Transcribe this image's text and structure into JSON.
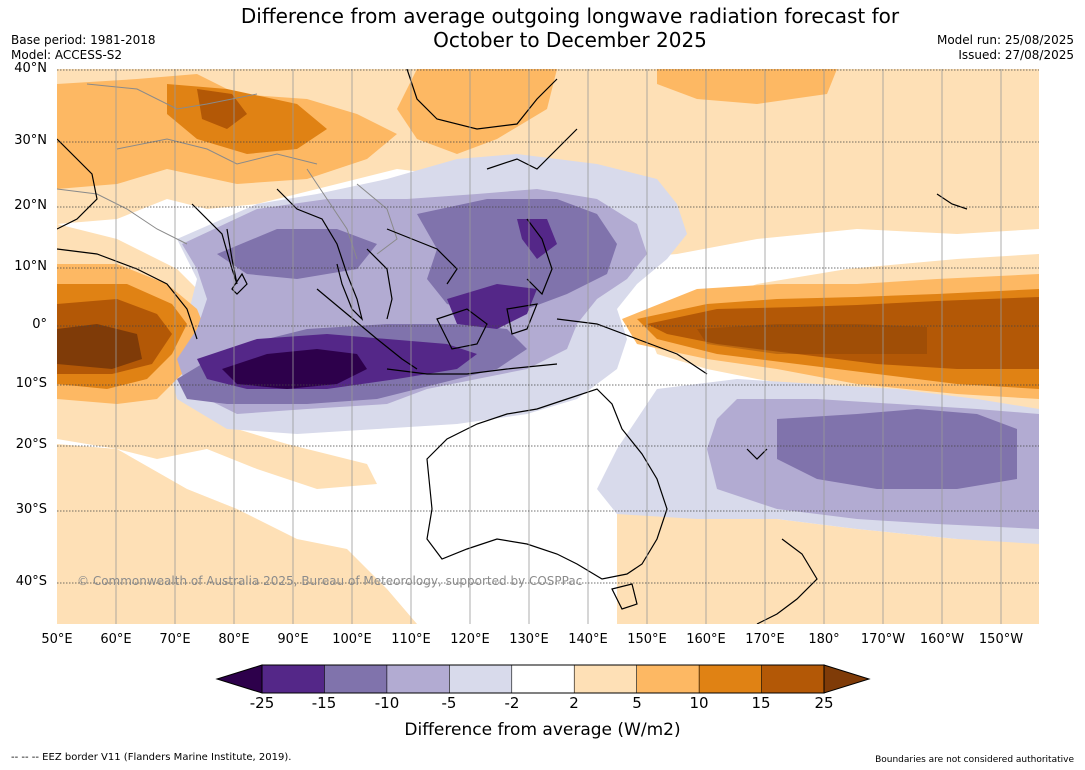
{
  "title_line1": "Difference from average outgoing longwave radiation forecast for",
  "title_line2": "October to December 2025",
  "base_period": "Base period: 1981-2018",
  "model": "Model: ACCESS-S2",
  "model_run": "Model run: 25/08/2025",
  "issued": "Issued: 27/08/2025",
  "copyright": "© Commonwealth of Australia 2025, Bureau of Meteorology, supported by COSPPac",
  "lat_labels": [
    "40°N",
    "30°N",
    "20°N",
    "10°N",
    "0°",
    "10°S",
    "20°S",
    "30°S",
    "40°S"
  ],
  "lon_labels": [
    "50°E",
    "60°E",
    "70°E",
    "80°E",
    "90°E",
    "100°E",
    "110°E",
    "120°E",
    "130°E",
    "140°E",
    "150°E",
    "160°E",
    "170°E",
    "180°",
    "170°W",
    "160°W",
    "150°W"
  ],
  "colorbar": {
    "title": "Difference from average (W/m2)",
    "labels": [
      "-25",
      "-15",
      "-10",
      "-5",
      "-2",
      "2",
      "5",
      "10",
      "15",
      "25"
    ],
    "colors": [
      "#2d004b",
      "#542788",
      "#8073ac",
      "#b2abd2",
      "#d8daeb",
      "#ffffff",
      "#fee0b6",
      "#fdb863",
      "#e08214",
      "#b35806",
      "#7f3b08"
    ]
  },
  "eez_note": "--  --  -- EEZ border V11 (Flanders Marine Institute, 2019).",
  "boundaries_note": "Boundaries are not considered authoritative"
}
